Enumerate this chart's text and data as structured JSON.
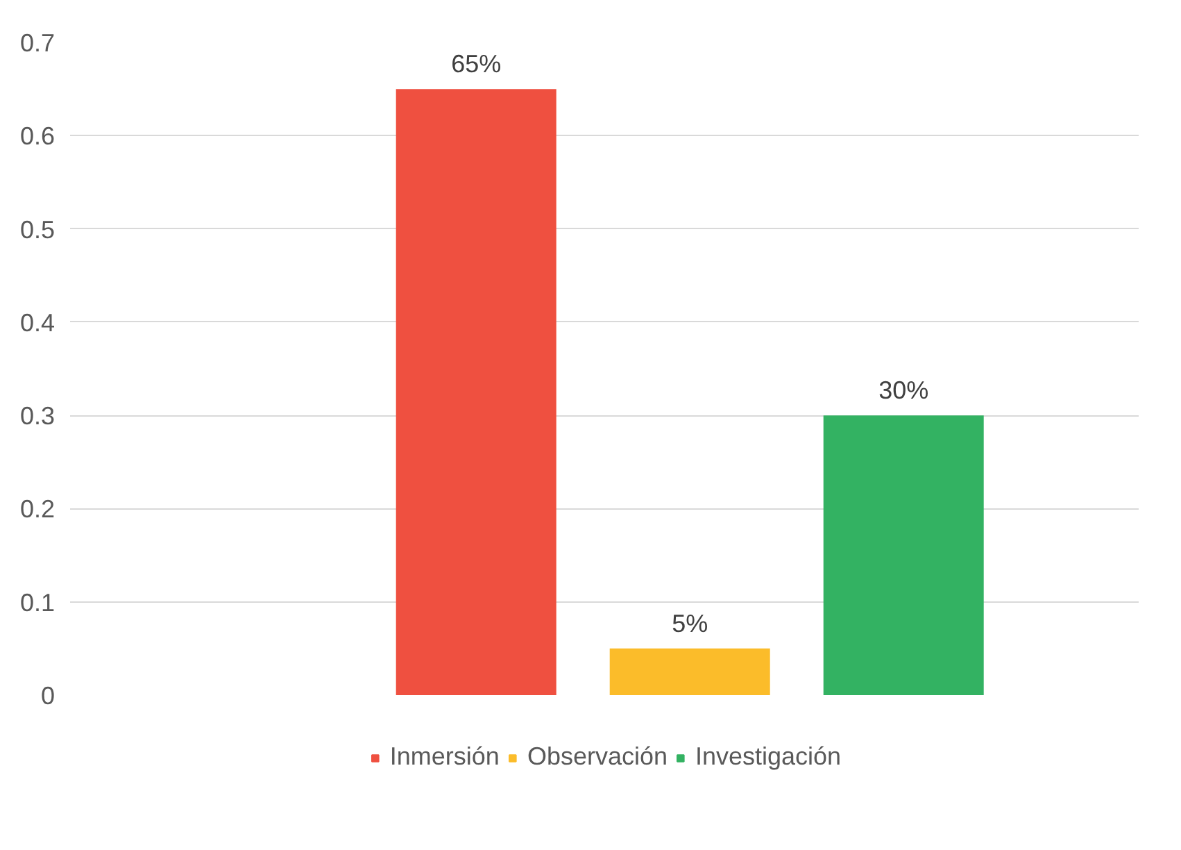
{
  "chart_data": {
    "type": "bar",
    "categories": [
      null
    ],
    "series": [
      {
        "name": "Inmersión",
        "color": "#ef5040",
        "values": [
          0.65
        ],
        "value_labels": [
          "65%"
        ]
      },
      {
        "name": "Observación",
        "color": "#fbbc2a",
        "values": [
          0.05
        ],
        "value_labels": [
          "5%"
        ]
      },
      {
        "name": "Investigación",
        "color": "#33b262",
        "values": [
          0.3
        ],
        "value_labels": [
          "30%"
        ]
      }
    ],
    "ylim": [
      0,
      0.7
    ],
    "yticks": [
      0,
      0.1,
      0.2,
      0.3,
      0.4,
      0.5,
      0.6,
      0.7
    ],
    "grid": "y",
    "legend": "bottom"
  }
}
